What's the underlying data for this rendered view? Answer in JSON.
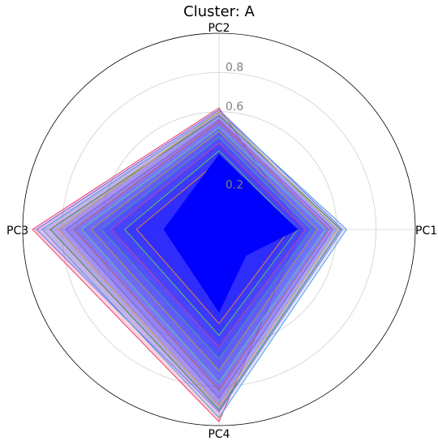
{
  "chart_data": {
    "type": "radar",
    "title": "Cluster: A",
    "axes": [
      "PC1",
      "PC2",
      "PC3",
      "PC4"
    ],
    "r_ticks": [
      0.2,
      0.4,
      0.6,
      0.8
    ],
    "r_tick_labels": [
      "0.2",
      "",
      "0.6",
      "0.8"
    ],
    "r_max": 1.0,
    "grid": true,
    "series_note_count": 0,
    "series": [
      {
        "values": [
          0.42,
          0.62,
          0.95,
          0.98
        ],
        "color": "#e8406a",
        "fill": "#e8406a"
      },
      {
        "values": [
          0.63,
          0.61,
          0.93,
          0.93
        ],
        "color": "#6a6aff",
        "fill": "#6a6aff"
      },
      {
        "values": [
          0.65,
          0.6,
          0.9,
          0.96
        ],
        "color": "#4a9fd6",
        "fill": "#8a8aff"
      },
      {
        "values": [
          0.62,
          0.58,
          0.86,
          0.92
        ],
        "color": "#3a8f3a",
        "fill": "#7070ff"
      },
      {
        "values": [
          0.6,
          0.6,
          0.82,
          0.9
        ],
        "color": "#d6a040",
        "fill": "#6060ff"
      },
      {
        "values": [
          0.58,
          0.56,
          0.78,
          0.86
        ],
        "color": "#8a5ac8",
        "fill": "#5050ff"
      },
      {
        "values": [
          0.56,
          0.55,
          0.74,
          0.82
        ],
        "color": "#c85a5a",
        "fill": "#4545ff"
      },
      {
        "values": [
          0.54,
          0.52,
          0.7,
          0.78
        ],
        "color": "#5ac8a0",
        "fill": "#3a3aff"
      },
      {
        "values": [
          0.5,
          0.5,
          0.65,
          0.72
        ],
        "color": "#a0a040",
        "fill": "#2f2fff"
      },
      {
        "values": [
          0.47,
          0.47,
          0.6,
          0.66
        ],
        "color": "#40a0a0",
        "fill": "#2525ff"
      },
      {
        "values": [
          0.44,
          0.44,
          0.55,
          0.6
        ],
        "color": "#c040a0",
        "fill": "#1a1aff"
      },
      {
        "values": [
          0.4,
          0.4,
          0.48,
          0.54
        ],
        "color": "#60c060",
        "fill": "#1010ff"
      },
      {
        "values": [
          0.36,
          0.35,
          0.42,
          0.48
        ],
        "color": "#e08040",
        "fill": "#0808ff"
      },
      {
        "values": [
          0.4,
          0.38,
          0.28,
          0.2
        ],
        "color": "#0000ff",
        "fill": "#0000ff"
      },
      {
        "values": [
          0.2,
          0.3,
          0.28,
          0.42
        ],
        "color": "#0000ff",
        "fill": "#0000ff"
      }
    ]
  }
}
